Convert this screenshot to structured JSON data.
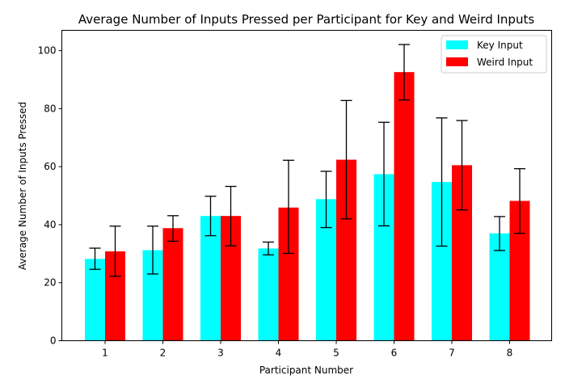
{
  "chart_data": {
    "type": "bar",
    "title": "Average Number of Inputs Pressed per Participant for Key and Weird Inputs",
    "xlabel": "Participant Number",
    "ylabel": "Average Number of Inputs Pressed",
    "categories": [
      "1",
      "2",
      "3",
      "4",
      "5",
      "6",
      "7",
      "8"
    ],
    "ylim": [
      0,
      107
    ],
    "yticks": [
      0,
      20,
      40,
      60,
      80,
      100
    ],
    "grid": false,
    "legend_position": "top-right",
    "series": [
      {
        "name": "Key Input",
        "color": "#00ffff",
        "values": [
          28.2,
          31.2,
          43.0,
          31.8,
          48.8,
          57.4,
          54.7,
          37.0
        ],
        "error_low": [
          24.6,
          23.0,
          36.2,
          29.6,
          39.0,
          39.6,
          32.6,
          31.1
        ],
        "error_high": [
          31.9,
          39.5,
          49.8,
          34.0,
          58.4,
          75.3,
          76.8,
          42.8
        ]
      },
      {
        "name": "Weird Input",
        "color": "#ff0000",
        "values": [
          30.8,
          38.8,
          43.0,
          45.9,
          62.4,
          92.6,
          60.5,
          48.2
        ],
        "error_low": [
          22.2,
          34.3,
          32.7,
          30.1,
          42.0,
          83.0,
          45.1,
          37.0
        ],
        "error_high": [
          39.5,
          43.1,
          53.2,
          62.2,
          82.8,
          102.1,
          75.9,
          59.3
        ]
      }
    ]
  }
}
